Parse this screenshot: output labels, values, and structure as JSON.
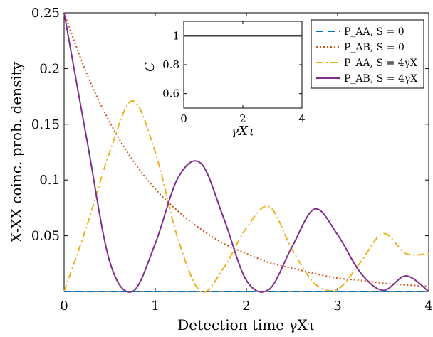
{
  "chart_data": [
    {
      "type": "line",
      "xlabel": "Detection time γXτ",
      "ylabel": "X-XX coinc. prob. density",
      "xlim": [
        0,
        4
      ],
      "ylim": [
        0,
        0.25
      ],
      "x_ticks": [
        "0",
        "1",
        "2",
        "3",
        "4"
      ],
      "y_ticks": [
        "0.05",
        "0.1",
        "0.15",
        "0.2",
        "0.25"
      ],
      "grid": false,
      "legend_position": "top-right",
      "x": [
        0,
        0.25,
        0.5,
        0.75,
        1.0,
        1.25,
        1.5,
        1.75,
        2.0,
        2.25,
        2.5,
        2.75,
        3.0,
        3.25,
        3.5,
        3.75,
        4.0
      ],
      "series": [
        {
          "name": "P_AA, S = 0",
          "color": "#0072BD",
          "style": "dashed",
          "values": [
            0,
            0,
            0,
            0,
            0,
            0,
            0,
            0,
            0,
            0,
            0,
            0,
            0,
            0,
            0,
            0,
            0
          ]
        },
        {
          "name": "P_AB, S = 0",
          "color": "#D95319",
          "style": "dotted",
          "values": [
            0.25,
            0.195,
            0.152,
            0.118,
            0.092,
            0.072,
            0.056,
            0.043,
            0.034,
            0.026,
            0.021,
            0.016,
            0.012,
            0.01,
            0.0075,
            0.0059,
            0.0046
          ]
        },
        {
          "name": "P_AA, S = 4γX",
          "color": "#EDB120",
          "style": "dashdot",
          "values": [
            0,
            0.059,
            0.125,
            0.171,
            0.125,
            0.047,
            0.0,
            0.021,
            0.057,
            0.076,
            0.038,
            0.007,
            0.002,
            0.026,
            0.052,
            0.034,
            0.034
          ]
        },
        {
          "name": "P_AB, S = 4γX",
          "color": "#7E2F8E",
          "style": "solid",
          "values": [
            0.25,
            0.136,
            0.027,
            0.0,
            0.043,
            0.102,
            0.115,
            0.066,
            0.01,
            0.002,
            0.04,
            0.074,
            0.051,
            0.017,
            0.001,
            0.014,
            0.0
          ]
        }
      ]
    },
    {
      "type": "line",
      "xlabel": "γXτ",
      "ylabel": "C",
      "xlim": [
        0,
        4
      ],
      "ylim": [
        0.5,
        1.1
      ],
      "x_ticks": [
        "0",
        "2",
        "4"
      ],
      "y_ticks": [
        "0.6",
        "0.8",
        "1"
      ],
      "grid": false,
      "x": [
        0,
        4
      ],
      "series": [
        {
          "color": "#000000",
          "style": "solid",
          "values": [
            1,
            1
          ]
        }
      ]
    }
  ]
}
